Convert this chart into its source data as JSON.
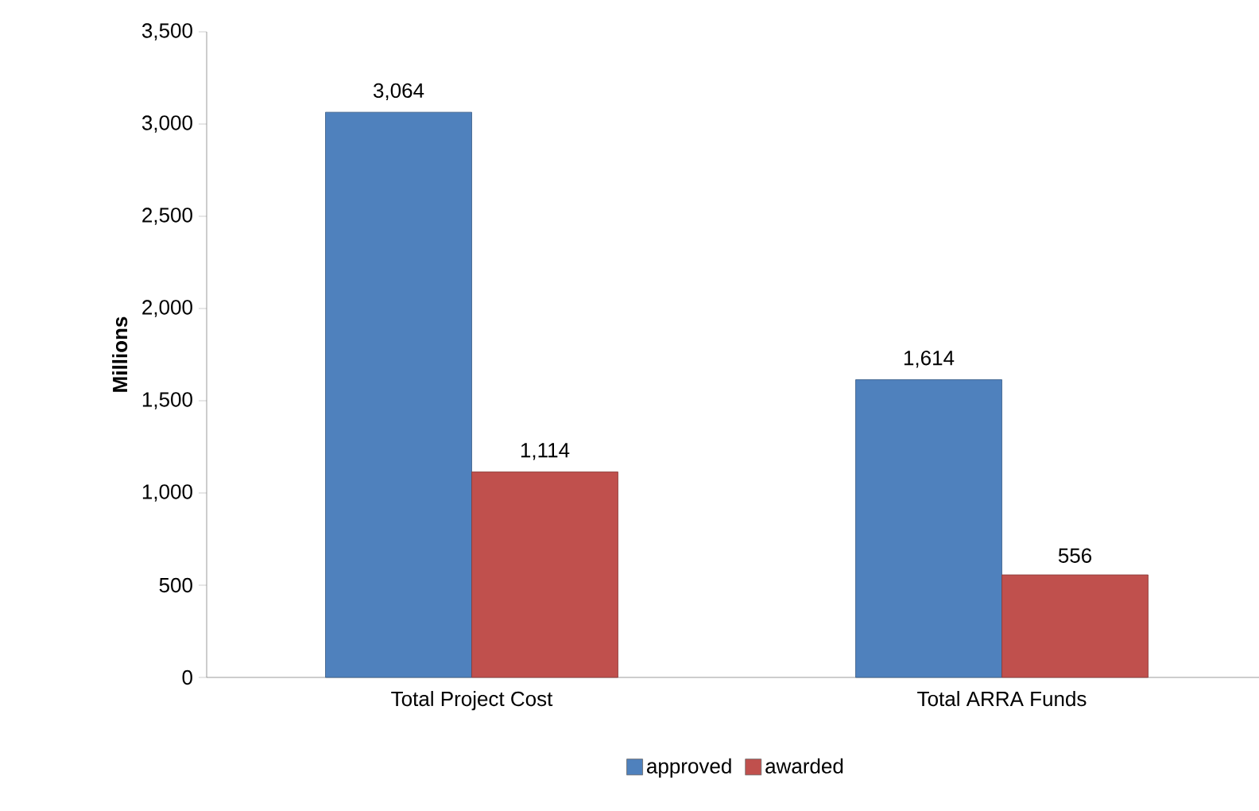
{
  "chart_data": {
    "type": "bar",
    "ylabel": "Millions",
    "categories": [
      "Total Project Cost",
      "Total ARRA Funds"
    ],
    "series": [
      {
        "name": "approved",
        "color": "#4f81bd",
        "values": [
          3064,
          1614
        ],
        "value_labels": [
          "3,064",
          "1,614"
        ]
      },
      {
        "name": "awarded",
        "color": "#c0504d",
        "values": [
          1114,
          556
        ],
        "value_labels": [
          "1,114",
          "556"
        ]
      }
    ],
    "ylim": [
      0,
      3500
    ],
    "yticks": [
      {
        "value": 0,
        "label": "0"
      },
      {
        "value": 500,
        "label": "500"
      },
      {
        "value": 1000,
        "label": "1,000"
      },
      {
        "value": 1500,
        "label": "1,500"
      },
      {
        "value": 2000,
        "label": "2,000"
      },
      {
        "value": 2500,
        "label": "2,500"
      },
      {
        "value": 3000,
        "label": "3,000"
      },
      {
        "value": 3500,
        "label": "3,500"
      }
    ],
    "legend": "bottom",
    "grid": false
  }
}
